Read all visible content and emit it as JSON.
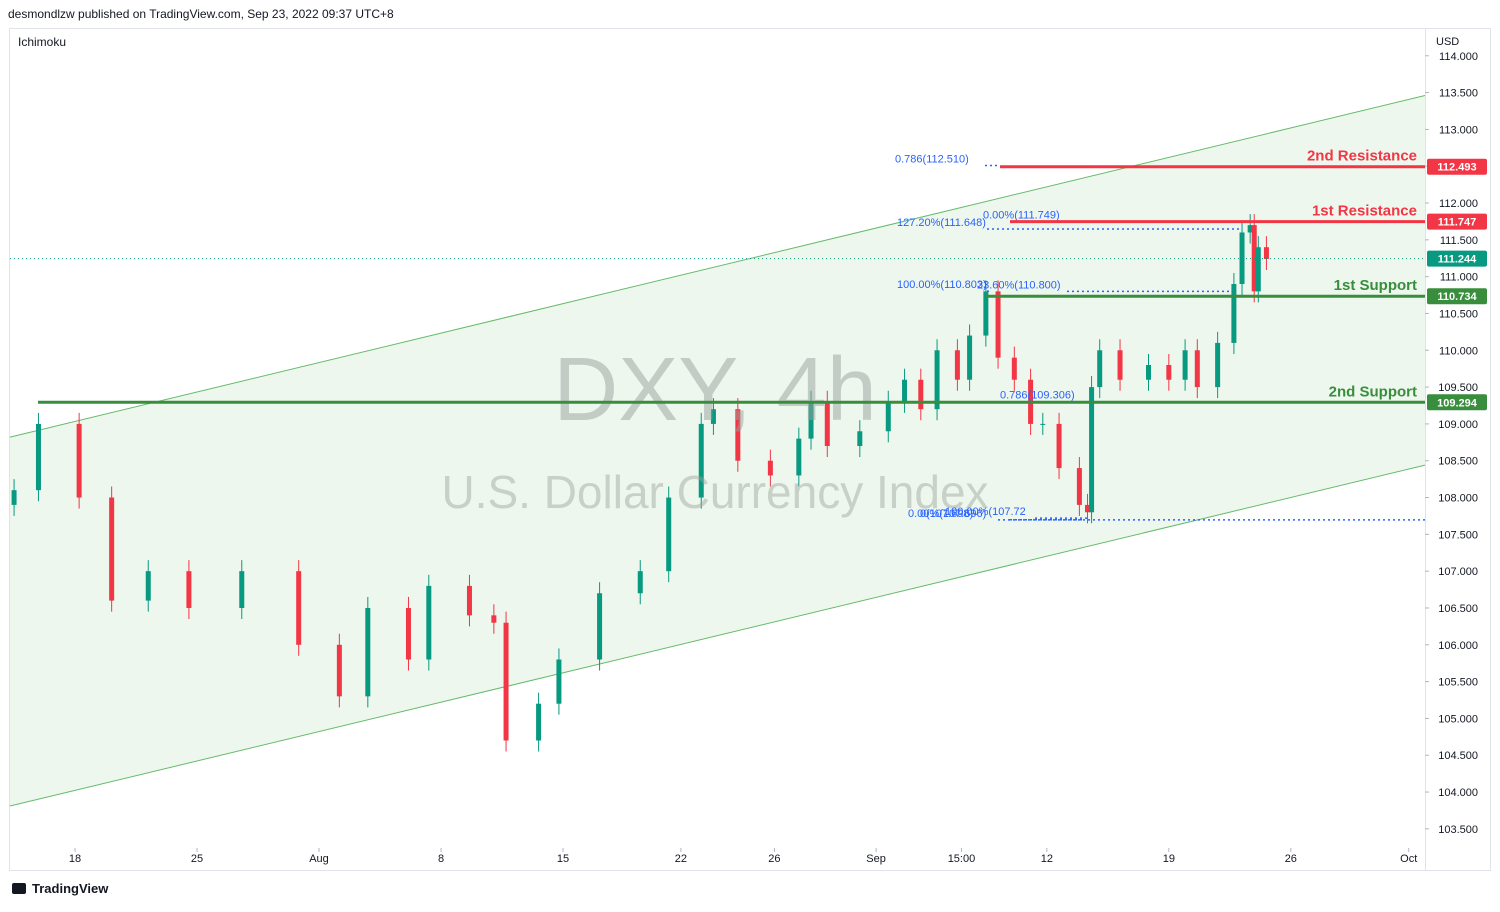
{
  "header": {
    "publisher": "desmondlzw published on TradingView.com, Sep 23, 2022 09:37 UTC+8",
    "indicator": "Ichimoku",
    "currency": "USD",
    "watermark_symbol": "DXY, 4h",
    "watermark_name": "U.S. Dollar Currency Index",
    "footer": "TradingView"
  },
  "chart_data": {
    "type": "candlestick",
    "x": [
      1,
      7,
      17,
      25,
      34,
      44,
      57,
      71,
      81,
      88,
      98,
      103,
      113,
      119,
      122,
      130,
      135,
      145,
      155,
      162,
      170,
      173,
      179,
      187,
      194,
      197,
      201,
      209,
      216,
      220,
      224,
      228,
      233,
      236,
      240,
      243,
      247,
      251,
      254,
      258,
      263,
      265,
      266,
      268,
      273,
      280,
      285,
      289,
      292,
      297,
      301,
      303,
      305,
      306,
      307,
      309
    ],
    "open": [
      107.9,
      108.1,
      109.0,
      108.0,
      106.6,
      107.0,
      106.5,
      107.0,
      106.0,
      105.3,
      106.5,
      105.8,
      106.8,
      106.4,
      106.3,
      104.7,
      105.2,
      105.8,
      106.7,
      107.0,
      108.0,
      109.0,
      109.2,
      108.5,
      108.3,
      108.8,
      109.3,
      108.7,
      108.9,
      109.3,
      109.6,
      109.2,
      110.0,
      109.6,
      110.2,
      110.8,
      109.9,
      109.6,
      109.0,
      109.0,
      108.4,
      107.9,
      107.8,
      109.5,
      110.0,
      109.6,
      109.8,
      109.6,
      110.0,
      109.5,
      110.1,
      110.9,
      111.6,
      111.7,
      110.8,
      111.4
    ],
    "high": [
      108.25,
      109.15,
      109.15,
      108.15,
      107.15,
      107.15,
      107.15,
      107.15,
      106.15,
      106.65,
      106.65,
      106.95,
      106.95,
      106.55,
      106.45,
      105.35,
      105.95,
      106.85,
      107.15,
      108.15,
      109.15,
      109.35,
      109.35,
      108.65,
      108.95,
      109.45,
      109.45,
      109.05,
      109.45,
      109.75,
      109.75,
      110.15,
      110.15,
      110.35,
      110.95,
      110.95,
      110.05,
      109.75,
      109.15,
      109.15,
      108.55,
      108.05,
      109.65,
      110.15,
      110.15,
      109.95,
      109.95,
      110.15,
      110.15,
      110.25,
      111.05,
      111.75,
      111.85,
      111.85,
      111.55,
      111.55
    ],
    "low": [
      107.75,
      107.95,
      107.85,
      106.45,
      106.45,
      106.35,
      106.35,
      105.85,
      105.15,
      105.15,
      105.65,
      105.65,
      106.25,
      106.15,
      104.55,
      104.55,
      105.05,
      105.65,
      106.55,
      106.85,
      107.85,
      108.85,
      108.35,
      108.15,
      108.15,
      108.65,
      108.55,
      108.55,
      108.75,
      109.15,
      109.05,
      109.05,
      109.45,
      109.45,
      110.05,
      109.75,
      109.45,
      108.85,
      108.85,
      108.25,
      107.75,
      107.65,
      107.65,
      109.35,
      109.45,
      109.45,
      109.45,
      109.45,
      109.35,
      109.35,
      109.95,
      110.75,
      111.45,
      110.65,
      110.65,
      111.09
    ],
    "close": [
      108.1,
      109.0,
      108.0,
      106.6,
      107.0,
      106.5,
      107.0,
      106.0,
      105.3,
      106.5,
      105.8,
      106.8,
      106.4,
      106.3,
      104.7,
      105.2,
      105.8,
      106.7,
      107.0,
      108.0,
      109.0,
      109.2,
      108.5,
      108.3,
      108.8,
      109.3,
      108.7,
      108.9,
      109.3,
      109.6,
      109.2,
      110.0,
      109.6,
      110.2,
      110.8,
      109.9,
      109.6,
      109.0,
      109.0,
      108.4,
      107.9,
      107.8,
      109.5,
      110.0,
      109.6,
      109.8,
      109.6,
      110.0,
      109.5,
      110.1,
      110.9,
      111.6,
      111.7,
      110.8,
      111.4,
      111.24
    ],
    "up_color": "#089981",
    "down_color": "#f23645",
    "xlim": [
      0,
      348
    ],
    "ylim": [
      103.24,
      114.35
    ],
    "xticks": [
      {
        "value": 16,
        "label": "18"
      },
      {
        "value": 46,
        "label": "25"
      },
      {
        "value": 76,
        "label": "Aug"
      },
      {
        "value": 106,
        "label": "8"
      },
      {
        "value": 136,
        "label": "15"
      },
      {
        "value": 165,
        "label": "22"
      },
      {
        "value": 188,
        "label": "26"
      },
      {
        "value": 213,
        "label": "Sep"
      },
      {
        "value": 234,
        "label": "15:00"
      },
      {
        "value": 255,
        "label": "12"
      },
      {
        "value": 285,
        "label": "19"
      },
      {
        "value": 315,
        "label": "26"
      },
      {
        "value": 344,
        "label": "Oct"
      }
    ],
    "yticks": [
      {
        "value": 103.5,
        "label": "103.500"
      },
      {
        "value": 104,
        "label": "104.000"
      },
      {
        "value": 104.5,
        "label": "104.500"
      },
      {
        "value": 105,
        "label": "105.000"
      },
      {
        "value": 105.5,
        "label": "105.500"
      },
      {
        "value": 106,
        "label": "106.000"
      },
      {
        "value": 106.5,
        "label": "106.500"
      },
      {
        "value": 107,
        "label": "107.000"
      },
      {
        "value": 107.5,
        "label": "107.500"
      },
      {
        "value": 108,
        "label": "108.000"
      },
      {
        "value": 108.5,
        "label": "108.500"
      },
      {
        "value": 109,
        "label": "109.000"
      },
      {
        "value": 109.5,
        "label": "109.500"
      },
      {
        "value": 110,
        "label": "110.000"
      },
      {
        "value": 110.5,
        "label": "110.500"
      },
      {
        "value": 111,
        "label": "111.000"
      },
      {
        "value": 111.5,
        "label": "111.500"
      },
      {
        "value": 112,
        "label": "112.000"
      },
      {
        "value": 112.5,
        "label": "112.500"
      },
      {
        "value": 113,
        "label": "113.000"
      },
      {
        "value": 113.5,
        "label": "113.500"
      },
      {
        "value": 114,
        "label": "114.000"
      }
    ],
    "channel": {
      "x": [
        0,
        348
      ],
      "upper": [
        108.82,
        113.46
      ],
      "lower": [
        103.81,
        108.44
      ],
      "color": "#66bb6a",
      "fill": "#e8f5e9"
    },
    "last_price": {
      "value": 111.244,
      "color": "#089981"
    },
    "levels": [
      {
        "name": "2nd Resistance",
        "value": 112.493,
        "color": "#f23645"
      },
      {
        "name": "1st Resistance",
        "value": 111.747,
        "color": "#f23645"
      },
      {
        "name": "1st Support",
        "value": 110.734,
        "color": "#388e3c"
      },
      {
        "name": "2nd Support",
        "value": 109.294,
        "color": "#388e3c"
      }
    ],
    "fib_labels": [
      {
        "text": "0.786(112.510)",
        "value": 112.51
      },
      {
        "text": "0.00%(111.749)",
        "value": 111.749
      },
      {
        "text": "127.20%(111.648)",
        "value": 111.648
      },
      {
        "text": "23.60%(110.800)",
        "value": 110.8
      },
      {
        "text": "100.00%(110.803)",
        "value": 110.803
      },
      {
        "text": "0.786(109.306)",
        "value": 109.306
      },
      {
        "text": "100.00%(107.72",
        "value": 107.72
      },
      {
        "text": "0(107.698)",
        "value": 107.698
      },
      {
        "text": "0.00%(107.696)",
        "value": 107.696
      }
    ]
  }
}
